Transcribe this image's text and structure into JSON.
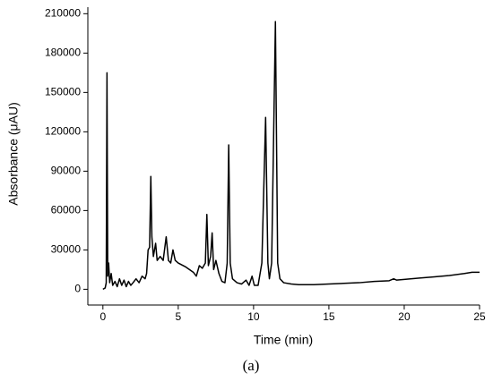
{
  "chart_data": {
    "type": "line",
    "xlabel": "Time (min)",
    "ylabel": "Absorbance (μAU)",
    "caption": "(a)",
    "x": [
      0.0,
      0.15,
      0.22,
      0.27,
      0.32,
      0.38,
      0.45,
      0.55,
      0.65,
      0.8,
      0.95,
      1.1,
      1.25,
      1.4,
      1.55,
      1.7,
      1.85,
      2.0,
      2.2,
      2.4,
      2.6,
      2.8,
      2.9,
      3.0,
      3.1,
      3.18,
      3.25,
      3.35,
      3.5,
      3.6,
      3.8,
      4.0,
      4.2,
      4.35,
      4.5,
      4.65,
      4.8,
      5.0,
      5.5,
      6.0,
      6.2,
      6.4,
      6.6,
      6.8,
      6.9,
      7.0,
      7.15,
      7.25,
      7.35,
      7.5,
      7.7,
      7.9,
      8.1,
      8.25,
      8.35,
      8.45,
      8.6,
      8.9,
      9.2,
      9.5,
      9.7,
      9.9,
      10.05,
      10.3,
      10.55,
      10.8,
      10.95,
      11.05,
      11.2,
      11.45,
      11.6,
      11.75,
      12.0,
      12.5,
      13.0,
      14.0,
      15.0,
      16.0,
      17.0,
      18.0,
      19.0,
      19.3,
      19.5,
      20.0,
      21.0,
      22.0,
      23.0,
      24.0,
      24.5,
      25.0
    ],
    "series": [
      {
        "name": "Absorbance",
        "color": "#000000",
        "values": [
          0,
          1000,
          5000,
          165000,
          10000,
          20000,
          5000,
          12000,
          3000,
          6000,
          2000,
          8000,
          3000,
          7000,
          2000,
          6000,
          3000,
          5000,
          8000,
          5000,
          10000,
          8000,
          12000,
          30000,
          32000,
          86000,
          40000,
          25000,
          35000,
          22000,
          25000,
          22000,
          40000,
          22000,
          20000,
          30000,
          22000,
          20000,
          17000,
          13000,
          10000,
          18000,
          16000,
          20000,
          57000,
          18000,
          25000,
          43000,
          15000,
          22000,
          12000,
          6000,
          5000,
          20000,
          110000,
          20000,
          8000,
          5000,
          4000,
          7000,
          3000,
          10000,
          3000,
          3000,
          20000,
          131000,
          20000,
          8000,
          20000,
          204000,
          20000,
          8000,
          5000,
          4000,
          3500,
          3500,
          4000,
          4500,
          5000,
          6000,
          6500,
          8000,
          7000,
          7500,
          8500,
          9500,
          10500,
          12000,
          13000,
          13000
        ]
      }
    ],
    "xlim": [
      -1,
      25
    ],
    "ylim": [
      -12000,
      215000
    ],
    "xticks": [
      0,
      5,
      10,
      15,
      20,
      25
    ],
    "yticks": [
      0,
      30000,
      60000,
      90000,
      120000,
      150000,
      180000,
      210000
    ]
  }
}
